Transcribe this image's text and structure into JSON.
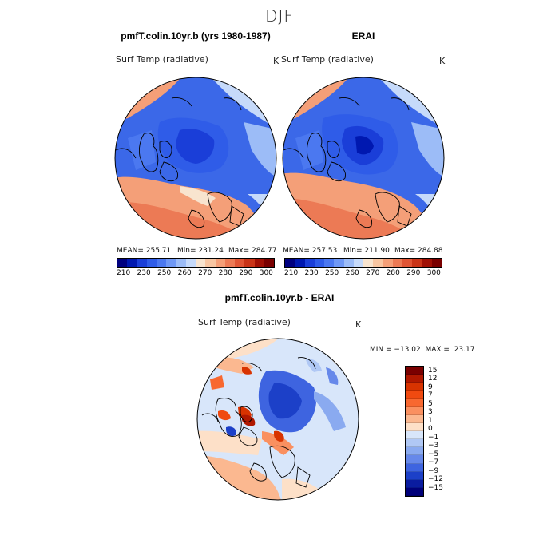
{
  "season": "DJF",
  "panels": [
    {
      "title": "pmfT.colin.10yr.b (yrs 1980-1987)",
      "variable": "Surf Temp (radiative)",
      "unit": "K",
      "mean": "MEAN= 255.71",
      "min": "Min= 231.24",
      "max": "Max= 284.77"
    },
    {
      "title": "ERAI",
      "variable": "Surf Temp (radiative)",
      "unit": "K",
      "mean": "MEAN= 257.53",
      "min": "Min= 211.90",
      "max": "Max= 284.88"
    }
  ],
  "diff": {
    "title": "pmfT.colin.10yr.b - ERAI",
    "variable": "Surf Temp (radiative)",
    "unit": "K",
    "minmax": "MIN = −13.02  MAX =  23.17"
  },
  "colorbar_top": {
    "ticks": [
      "210",
      "230",
      "250",
      "260",
      "270",
      "280",
      "290",
      "300"
    ],
    "colors": [
      "#00007f",
      "#0018b0",
      "#1a3ed8",
      "#2f5ce8",
      "#4b78f0",
      "#6f98f5",
      "#9cbcf7",
      "#c6dafa",
      "#f8e4cf",
      "#f8c6a2",
      "#f49f78",
      "#ec7a55",
      "#e05535",
      "#c93418",
      "#a01005",
      "#7a0000"
    ]
  },
  "colorbar_diff": {
    "labels": [
      "15",
      "12",
      "9",
      "7",
      "5",
      "3",
      "1",
      "0",
      "−1",
      "−3",
      "−5",
      "−7",
      "−9",
      "−12",
      "−15"
    ],
    "colors": [
      "#7a0000",
      "#b01800",
      "#d83300",
      "#f04a10",
      "#f86830",
      "#fa9060",
      "#fbb890",
      "#fde0c8",
      "#d8e6fa",
      "#b0c8f5",
      "#8aaaf0",
      "#6688ea",
      "#3e64e0",
      "#1c40c8",
      "#0a1ca0",
      "#00007a"
    ]
  }
}
